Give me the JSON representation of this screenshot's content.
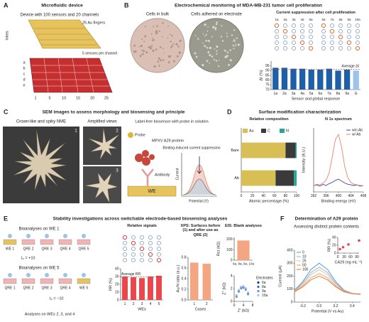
{
  "panels": [
    {
      "label": "A",
      "title": "Microfluidic device",
      "texts": [
        "Device with 100 sensors and 20 channels",
        "25 Au fingers",
        "5 sensors per channel",
        "Inlets",
        "a",
        "b",
        "c",
        "d",
        "e",
        "1",
        "5",
        "10",
        "15",
        "20",
        "25"
      ]
    },
    {
      "label": "B",
      "title": "Electrochemical monitoring of MDA-MB-231 tumor cell proliferation",
      "texts": [
        "Cells in bulk",
        "Cells adhered on electrode",
        "1a",
        "2a",
        "3a",
        "4a",
        "5a",
        "6a",
        "7a",
        "8a",
        "9a",
        "10a"
      ]
    },
    {
      "label": "C",
      "title": "SEM images to assess morphology and biosensing and principle",
      "texts": [
        "Crown-like and spiky NME",
        "Amplified views",
        "Label-free biosensor with probe in solution",
        "Binding-induced current suppression",
        "Probe",
        "MPXV A29 protein",
        "Antibody",
        "WE",
        "Current",
        "Potential (V)",
        "1",
        "2",
        "3"
      ]
    },
    {
      "label": "D",
      "title": "Surface modification characterization"
    },
    {
      "label": "E",
      "title": "Stability investigations across switchable electrode-based biosensing analyses",
      "texts": [
        "Bioanalyses on WE 1",
        "Bioanalyses on WE 5",
        "Analyses on WEs 2, 3, and 4",
        "WE 1",
        "QRE 2",
        "QRE 3",
        "QRE 4",
        "QRE 5",
        "QRE 1",
        "QRE 2",
        "QRE 3",
        "QRE 4",
        "WE 5",
        "Iₚ = +10",
        "Iₚ = −10"
      ]
    },
    {
      "label": "F",
      "title": "Determination of A29 protein",
      "subtitle": "Assessing distinct protein contents"
    }
  ],
  "chart_data": [
    {
      "type": "bar",
      "title": "Current suppression after cell proliferation",
      "categories": [
        "1a",
        "2a",
        "3a",
        "4a",
        "5a",
        "6a",
        "7a",
        "8a",
        "9a",
        "G"
      ],
      "values": [
        93,
        93,
        92,
        92,
        91,
        91,
        92,
        90,
        91,
        90
      ],
      "colors": [
        "#1f5fa8",
        "#1f5fa8",
        "#1f5fa8",
        "#1f5fa8",
        "#1f5fa8",
        "#1f5fa8",
        "#1f5fa8",
        "#1f5fa8",
        "#1f5fa8",
        "#9dc3e6"
      ],
      "ylim": [
        70,
        100
      ],
      "yticks": [
        70,
        75,
        80,
        85,
        90,
        95
      ],
      "ylabel": "ΔI (%)",
      "xlabel": "Sensor and global response",
      "average_line": 91.5,
      "annotation": "Average ΔI"
    },
    {
      "type": "stacked_hbar",
      "title": "Relative composition",
      "categories": [
        "Bare",
        "Ab"
      ],
      "series": [
        {
          "name": "Au",
          "color": "#d8bf55",
          "values": [
            80,
            62
          ]
        },
        {
          "name": "C",
          "color": "#3a3a3a",
          "values": [
            18,
            33
          ]
        },
        {
          "name": "N",
          "color": "#26a69a",
          "values": [
            2,
            5
          ]
        }
      ],
      "xlim": [
        0,
        100
      ],
      "xticks": [
        0,
        20,
        40,
        60,
        80,
        100
      ],
      "xlabel": "Atomic percentage (%)",
      "legend": "top"
    },
    {
      "type": "line",
      "title": "N 1s spectrum",
      "x": [
        392,
        393,
        394,
        395,
        396,
        397,
        398,
        399,
        400,
        401,
        402,
        403,
        404,
        405,
        406,
        407,
        408
      ],
      "series": [
        {
          "name": "w/o Ab",
          "color": "#3b4a9a",
          "values": [
            0.1,
            0.11,
            0.09,
            0.12,
            0.1,
            0.13,
            0.15,
            0.18,
            0.2,
            0.17,
            0.14,
            0.12,
            0.11,
            0.1,
            0.11,
            0.09,
            0.1
          ]
        },
        {
          "name": "w/ Ab",
          "color": "#e8866a",
          "values": [
            0.1,
            0.12,
            0.11,
            0.14,
            0.18,
            0.3,
            0.55,
            0.82,
            0.9,
            0.7,
            0.4,
            0.22,
            0.15,
            0.12,
            0.11,
            0.1,
            0.1
          ]
        }
      ],
      "xlim": [
        392,
        408
      ],
      "xticks": [
        392,
        396,
        400,
        404,
        408
      ],
      "ylim": [
        0,
        1
      ],
      "ylabel": "Intensity (A.U.)",
      "xlabel": "Binding energy (eV)",
      "legend": "upper right"
    },
    {
      "type": "bar",
      "title": "Relative signals",
      "categories": [
        "1",
        "2",
        "3",
        "4",
        "5"
      ],
      "values": [
        30,
        29,
        28,
        30,
        31
      ],
      "color": "#e8474c",
      "ylim": [
        0,
        40
      ],
      "yticks": [
        0,
        10,
        20,
        30,
        40
      ],
      "ylabel": "RR (%)",
      "xlabel": "WEs",
      "average_line": 29.6,
      "annotation": "Average RR"
    },
    {
      "type": "bar",
      "title": "XPS: Surfaces before (1) and after use as QRE (2)",
      "categories": [
        "1",
        "2"
      ],
      "values": [
        0.7,
        0.68
      ],
      "color": "#f4a582",
      "ylim": [
        0,
        0.8
      ],
      "yticks": [
        {
          "value": 0,
          "label": "0.0"
        },
        0.2,
        0.4,
        0.6,
        0.8
      ],
      "ylabel": "Au/N ratio (a.u.)",
      "xlabel": "Cases"
    },
    {
      "type": "bar",
      "title": "EIS: Blank analyses",
      "categories": [
        "6a, 8a, 9a, 10a"
      ],
      "values": [
        190
      ],
      "color": "#f4a582",
      "ylim": [
        0,
        220
      ],
      "yticks": [
        0,
        100,
        200
      ],
      "ylabel": "Rct (kΩ)"
    },
    {
      "type": "scatter",
      "x": [
        1,
        2,
        3,
        4,
        5,
        6
      ],
      "series": [
        {
          "name": "6a",
          "color": "#1f3b73",
          "values": [
            0.8,
            1.6,
            2.1,
            2.2,
            1.9,
            1.2
          ]
        },
        {
          "name": "8a",
          "color": "#3e64a8",
          "values": [
            0.9,
            1.7,
            2.2,
            2.3,
            2.0,
            1.3
          ]
        },
        {
          "name": "9a",
          "color": "#6d94d0",
          "values": [
            0.7,
            1.5,
            2.0,
            2.1,
            1.8,
            1.1
          ]
        },
        {
          "name": "10a",
          "color": "#a9c5ea",
          "values": [
            1.0,
            1.8,
            2.3,
            2.4,
            2.1,
            1.4
          ]
        }
      ],
      "xlim": [
        0,
        8
      ],
      "xticks": [
        0,
        4,
        8
      ],
      "ylim": [
        0,
        4
      ],
      "yticks": [
        0,
        2,
        4
      ],
      "xlabel": "Z' (kΩ)",
      "ylabel": "Z'' (kΩ)",
      "legend": "right",
      "legend_title": "Electrodes"
    },
    {
      "type": "line",
      "x": [
        -0.3,
        -0.2,
        -0.1,
        0,
        0.1,
        0.2,
        0.3,
        0.4,
        0.5
      ],
      "series": [
        {
          "name": "0",
          "color": "#4a90d9",
          "values": [
            92,
            158,
            252,
            300,
            252,
            158,
            92,
            67,
            61
          ]
        },
        {
          "name": "10",
          "color": "#7fb3e6",
          "values": [
            88,
            146,
            228,
            270,
            228,
            146,
            88,
            66,
            61
          ]
        },
        {
          "name": "25",
          "color": "#f2b880",
          "values": [
            86,
            138,
            212,
            250,
            212,
            138,
            86,
            65,
            61
          ]
        },
        {
          "name": "50",
          "color": "#ee9a5a",
          "values": [
            82,
            126,
            188,
            220,
            188,
            126,
            82,
            64,
            61
          ]
        },
        {
          "name": "100",
          "color": "#e07030",
          "values": [
            79,
            117,
            172,
            200,
            172,
            117,
            79,
            64,
            61
          ]
        }
      ],
      "xlim": [
        -0.3,
        0.5
      ],
      "xticks": [
        -0.2,
        {
          "value": 0,
          "label": "0.0"
        },
        0.2,
        0.4
      ],
      "ylim": [
        0,
        400
      ],
      "yticks": [
        0,
        100,
        200,
        300,
        400
      ],
      "ylabel": "Current (µA)",
      "xlabel": "Potential (V vs Au)",
      "legend": "upper left"
    },
    {
      "type": "scatter",
      "x": [
        10,
        25,
        50,
        100
      ],
      "values": [
        10,
        15,
        22,
        32
      ],
      "color": "#e8474c",
      "xlim": [
        0,
        100
      ],
      "xticks": [
        0,
        30,
        60,
        90
      ],
      "ylim": [
        0,
        40
      ],
      "yticks": [
        0,
        20,
        40
      ],
      "ylabel": "RR (%)",
      "xlabel": "CA29 (ng mL⁻¹)"
    }
  ]
}
